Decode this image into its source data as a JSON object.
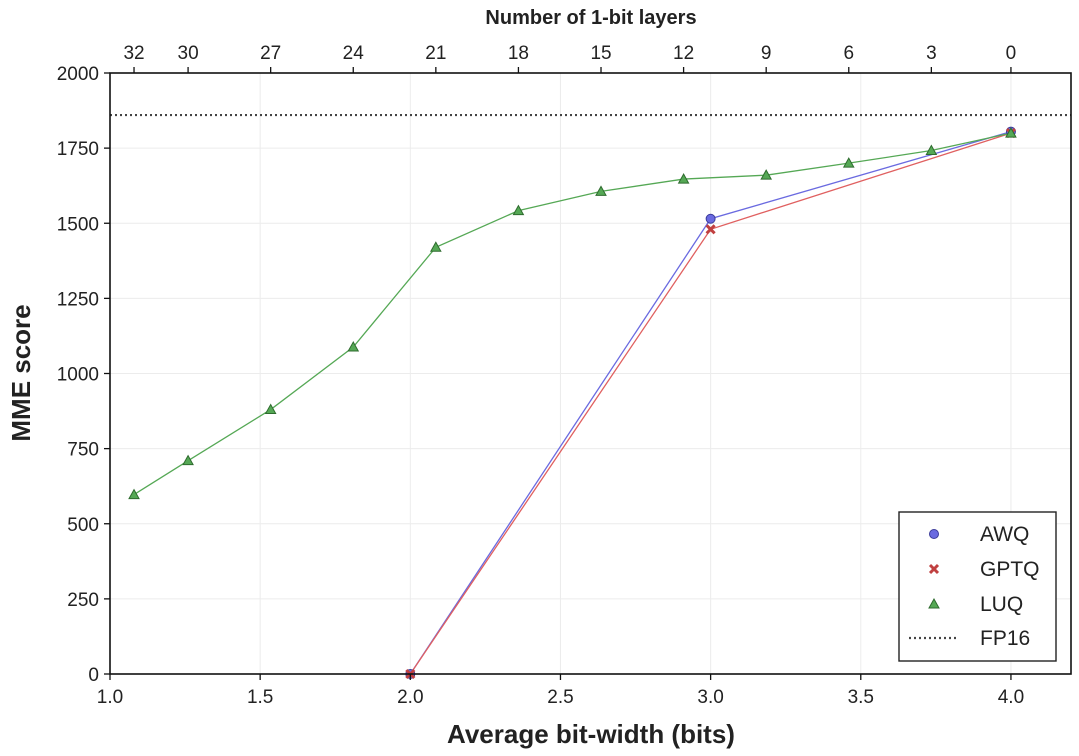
{
  "chart_data": {
    "type": "line",
    "xlabel": "Average bit-width (bits)",
    "ylabel": "MME score",
    "top_xlabel": "Number of 1-bit layers",
    "xlim": [
      1.0,
      4.2
    ],
    "ylim": [
      0,
      2000
    ],
    "x_ticks": [
      1.0,
      1.5,
      2.0,
      2.5,
      3.0,
      3.5,
      4.0
    ],
    "x_tick_labels": [
      "1.0",
      "1.5",
      "2.0",
      "2.5",
      "3.0",
      "3.5",
      "4.0"
    ],
    "y_ticks": [
      0,
      250,
      500,
      750,
      1000,
      1250,
      1500,
      1750,
      2000
    ],
    "y_tick_labels": [
      "0",
      "250",
      "500",
      "750",
      "1000",
      "1250",
      "1500",
      "1750",
      "2000"
    ],
    "top_ticks": [
      {
        "x": 1.08,
        "label": "32"
      },
      {
        "x": 1.26,
        "label": "30"
      },
      {
        "x": 1.535,
        "label": "27"
      },
      {
        "x": 1.81,
        "label": "24"
      },
      {
        "x": 2.085,
        "label": "21"
      },
      {
        "x": 2.36,
        "label": "18"
      },
      {
        "x": 2.635,
        "label": "15"
      },
      {
        "x": 2.91,
        "label": "12"
      },
      {
        "x": 3.185,
        "label": "9"
      },
      {
        "x": 3.46,
        "label": "6"
      },
      {
        "x": 3.735,
        "label": "3"
      },
      {
        "x": 4.0,
        "label": "0"
      }
    ],
    "grid": true,
    "legend_position": "bottom-right",
    "series": [
      {
        "name": "AWQ",
        "marker": "circle",
        "color": "#6a6ae0",
        "x": [
          2.0,
          3.0,
          4.0
        ],
        "y": [
          0,
          1515,
          1805
        ]
      },
      {
        "name": "GPTQ",
        "marker": "x",
        "color": "#e06060",
        "x": [
          2.0,
          3.0,
          4.0
        ],
        "y": [
          0,
          1480,
          1800
        ]
      },
      {
        "name": "LUQ",
        "marker": "triangle",
        "color": "#55a855",
        "x": [
          1.08,
          1.26,
          1.535,
          1.81,
          2.085,
          2.36,
          2.635,
          2.91,
          3.185,
          3.46,
          3.735,
          4.0
        ],
        "y": [
          597,
          710,
          880,
          1088,
          1420,
          1542,
          1606,
          1647,
          1660,
          1700,
          1742,
          1800
        ]
      }
    ],
    "reference_lines": [
      {
        "name": "FP16",
        "y": 1860,
        "style": "dotted",
        "color": "#444444"
      }
    ]
  }
}
